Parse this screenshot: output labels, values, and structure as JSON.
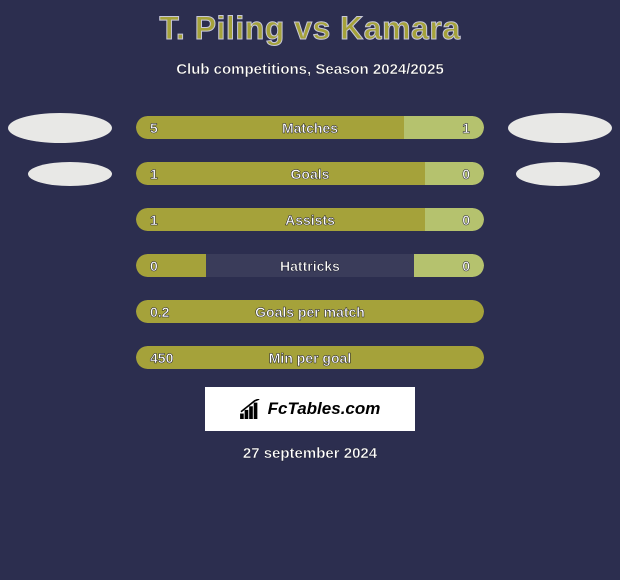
{
  "title": "T. Piling vs Kamara",
  "subtitle": "Club competitions, Season 2024/2025",
  "date": "27 september 2024",
  "branding_text": "FcTables.com",
  "colors": {
    "background": "#2c2e4f",
    "title": "#a5a23a",
    "title_stroke": "#c8c8d8",
    "text_white": "#ffffff",
    "text_stroke": "#1a1a2a",
    "bar_left": "#a5a23a",
    "bar_right": "#b5c26e",
    "bar_track": "#3a3c5a",
    "ellipse": "#e8e8e6",
    "branding_bg": "#ffffff",
    "branding_text": "#000000"
  },
  "rows": [
    {
      "label": "Matches",
      "left_val": "5",
      "right_val": "1",
      "left_pct": 77,
      "right_pct": 23,
      "show_right": true,
      "show_left_ellipse": true,
      "left_ellipse_small": false,
      "show_right_ellipse": true,
      "right_ellipse_small": false
    },
    {
      "label": "Goals",
      "left_val": "1",
      "right_val": "0",
      "left_pct": 83,
      "right_pct": 17,
      "show_right": true,
      "show_left_ellipse": true,
      "left_ellipse_small": true,
      "show_right_ellipse": true,
      "right_ellipse_small": true
    },
    {
      "label": "Assists",
      "left_val": "1",
      "right_val": "0",
      "left_pct": 83,
      "right_pct": 17,
      "show_right": true,
      "show_left_ellipse": false,
      "left_ellipse_small": false,
      "show_right_ellipse": false,
      "right_ellipse_small": false
    },
    {
      "label": "Hattricks",
      "left_val": "0",
      "right_val": "0",
      "left_pct": 20,
      "right_pct": 20,
      "show_right": true,
      "show_left_ellipse": false,
      "left_ellipse_small": false,
      "show_right_ellipse": false,
      "right_ellipse_small": false
    },
    {
      "label": "Goals per match",
      "left_val": "0.2",
      "right_val": "",
      "left_pct": 100,
      "right_pct": 0,
      "show_right": false,
      "show_left_ellipse": false,
      "left_ellipse_small": false,
      "show_right_ellipse": false,
      "right_ellipse_small": false
    },
    {
      "label": "Min per goal",
      "left_val": "450",
      "right_val": "",
      "left_pct": 100,
      "right_pct": 0,
      "show_right": false,
      "show_left_ellipse": false,
      "left_ellipse_small": false,
      "show_right_ellipse": false,
      "right_ellipse_small": false
    }
  ]
}
